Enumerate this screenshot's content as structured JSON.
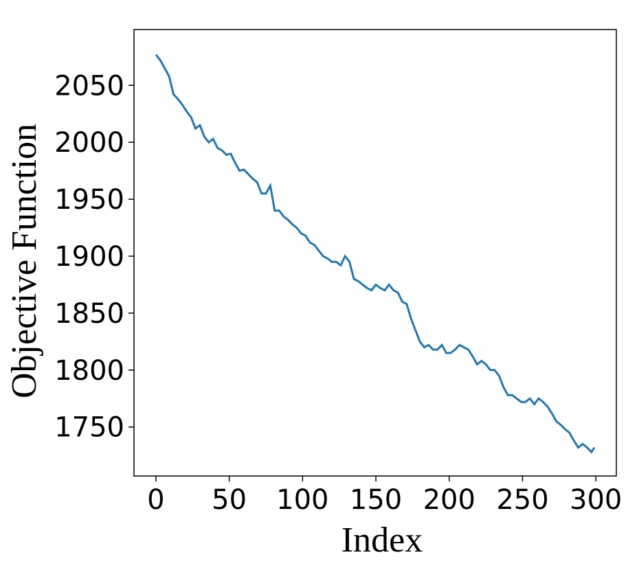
{
  "chart_data": {
    "type": "line",
    "xlabel": "Index",
    "ylabel": "Objective Function",
    "x": [
      0,
      3,
      6,
      9,
      12,
      15,
      18,
      21,
      24,
      27,
      30,
      33,
      36,
      39,
      42,
      45,
      48,
      51,
      54,
      57,
      60,
      63,
      66,
      69,
      72,
      75,
      78,
      81,
      84,
      87,
      90,
      93,
      96,
      99,
      102,
      105,
      108,
      111,
      114,
      117,
      120,
      123,
      126,
      129,
      132,
      135,
      138,
      141,
      144,
      147,
      150,
      153,
      156,
      159,
      162,
      165,
      168,
      171,
      174,
      177,
      180,
      183,
      186,
      189,
      192,
      195,
      198,
      201,
      204,
      207,
      210,
      213,
      216,
      219,
      222,
      225,
      228,
      231,
      234,
      237,
      240,
      243,
      246,
      249,
      252,
      255,
      258,
      261,
      264,
      267,
      270,
      273,
      276,
      279,
      282,
      285,
      288,
      291,
      294,
      297,
      299
    ],
    "series": [
      {
        "color": "#1f77b4",
        "values": [
          2077,
          2072,
          2065,
          2058,
          2042,
          2038,
          2033,
          2027,
          2022,
          2012,
          2015,
          2005,
          2000,
          2003,
          1995,
          1993,
          1989,
          1990,
          1982,
          1975,
          1976,
          1972,
          1968,
          1965,
          1955,
          1955,
          1962,
          1940,
          1940,
          1935,
          1932,
          1928,
          1925,
          1920,
          1918,
          1912,
          1910,
          1905,
          1900,
          1898,
          1895,
          1895,
          1892,
          1900,
          1895,
          1880,
          1878,
          1875,
          1872,
          1870,
          1875,
          1872,
          1870,
          1875,
          1870,
          1868,
          1860,
          1858,
          1845,
          1835,
          1825,
          1820,
          1822,
          1818,
          1818,
          1822,
          1815,
          1815,
          1818,
          1822,
          1820,
          1818,
          1812,
          1805,
          1808,
          1805,
          1800,
          1800,
          1795,
          1785,
          1778,
          1778,
          1775,
          1772,
          1772,
          1775,
          1770,
          1775,
          1772,
          1768,
          1762,
          1755,
          1752,
          1748,
          1745,
          1738,
          1732,
          1735,
          1732,
          1728,
          1732
        ]
      }
    ],
    "xlim": [
      -14.95,
      313.95
    ],
    "ylim": [
      1707,
      2099
    ],
    "xticks": [
      0,
      50,
      100,
      150,
      200,
      250,
      300
    ],
    "yticks": [
      1750,
      1800,
      1850,
      1900,
      1950,
      2000,
      2050
    ]
  }
}
